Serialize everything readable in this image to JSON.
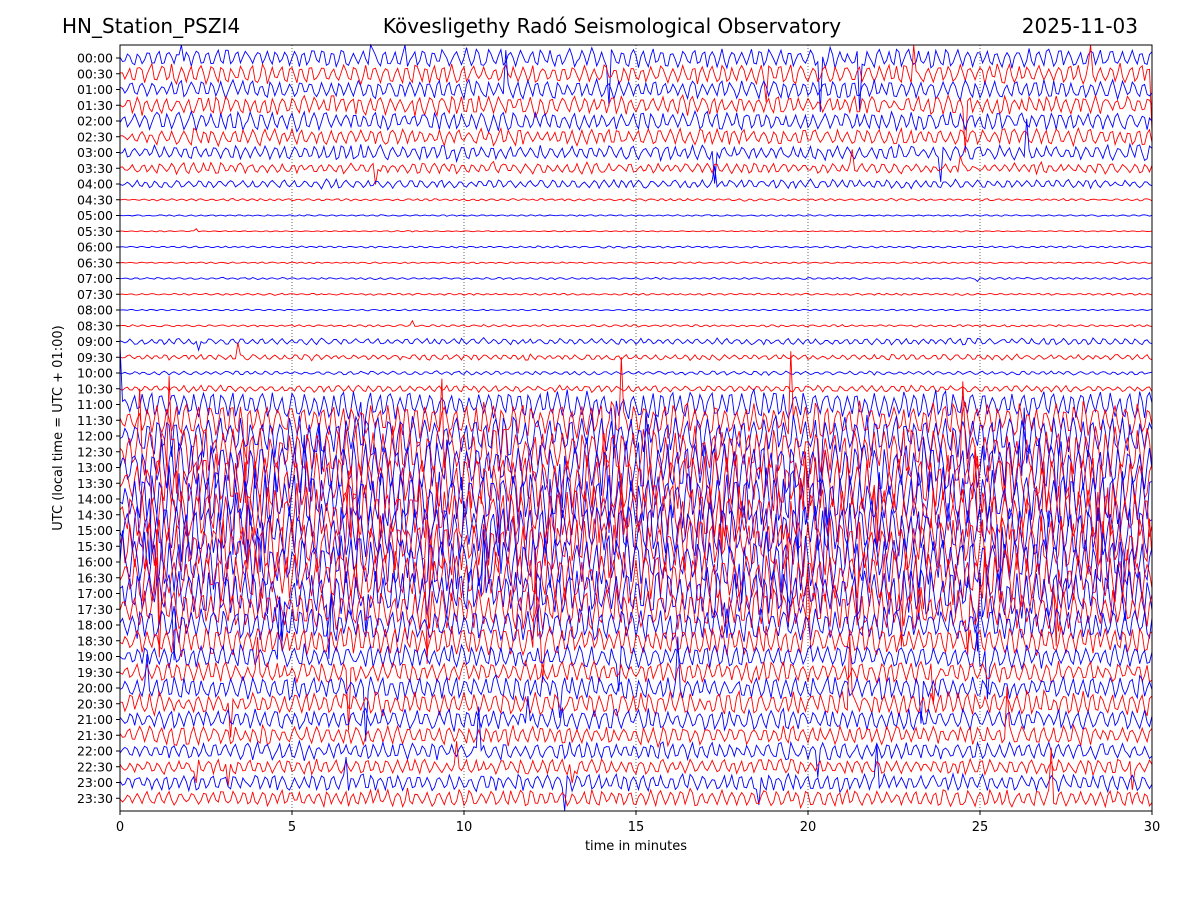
{
  "header": {
    "station": "HN_Station_PSZI4",
    "observatory": "Kövesligethy Radó Seismological Observatory",
    "date": "2025-11-03"
  },
  "chart_data": {
    "type": "line",
    "title": "Kövesligethy Radó Seismological Observatory",
    "xlabel": "time in minutes",
    "ylabel": "UTC (local time = UTC + 01:00)",
    "xlim": [
      0,
      30
    ],
    "x_ticks": [
      "0",
      "5",
      "10",
      "15",
      "20",
      "25",
      "30"
    ],
    "grid": "vertical dotted lines at 5, 10, 15, 20, 25",
    "trace_colors": [
      "#0000ff",
      "#ff0000"
    ],
    "row_labels": [
      "00:00",
      "00:30",
      "01:00",
      "01:30",
      "02:00",
      "02:30",
      "03:00",
      "03:30",
      "04:00",
      "04:30",
      "05:00",
      "05:30",
      "06:00",
      "06:30",
      "07:00",
      "07:30",
      "08:00",
      "08:30",
      "09:00",
      "09:30",
      "10:00",
      "10:30",
      "11:00",
      "11:30",
      "12:00",
      "12:30",
      "13:00",
      "13:30",
      "14:00",
      "14:30",
      "15:00",
      "15:30",
      "16:00",
      "16:30",
      "17:00",
      "17:30",
      "18:00",
      "18:30",
      "19:00",
      "19:30",
      "20:00",
      "20:30",
      "21:00",
      "21:30",
      "22:00",
      "22:30",
      "23:00",
      "23:30"
    ],
    "row_activity": [
      1.0,
      1.0,
      1.0,
      1.0,
      1.0,
      0.9,
      0.8,
      0.55,
      0.45,
      0.12,
      0.08,
      0.06,
      0.1,
      0.08,
      0.1,
      0.1,
      0.08,
      0.12,
      0.35,
      0.3,
      0.2,
      0.35,
      1.4,
      1.8,
      2.2,
      2.6,
      2.8,
      3.0,
      3.0,
      3.0,
      3.0,
      3.0,
      2.9,
      2.7,
      2.5,
      2.2,
      1.8,
      1.5,
      1.2,
      1.1,
      1.2,
      1.2,
      1.1,
      1.0,
      0.9,
      0.8,
      0.9,
      0.9
    ]
  }
}
